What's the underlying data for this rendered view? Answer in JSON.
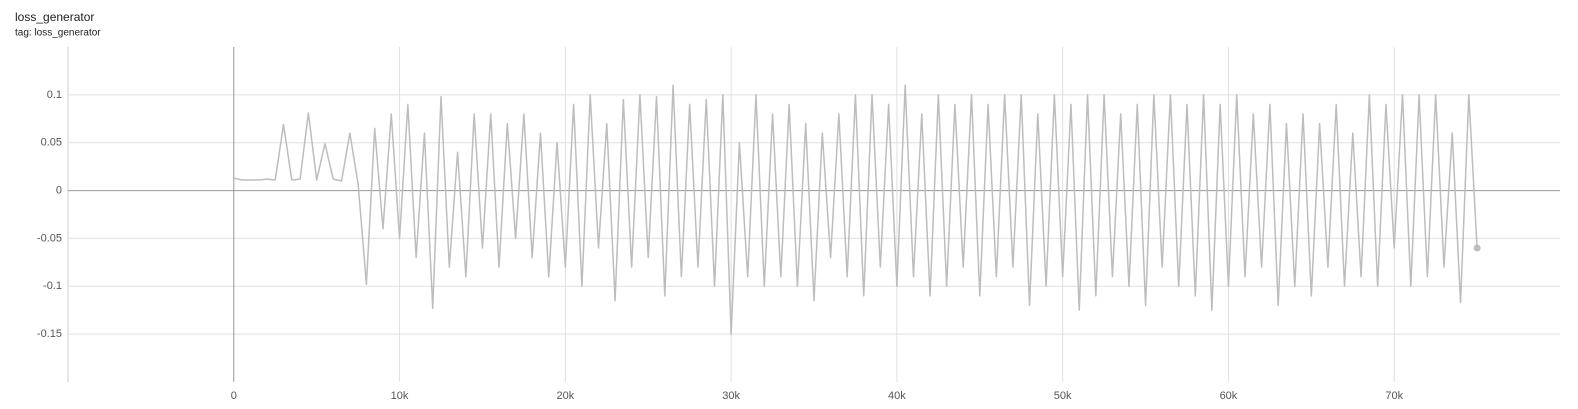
{
  "chart_data": {
    "type": "line",
    "title": "loss_generator",
    "subtitle": "tag: loss_generator",
    "x": [
      0,
      500,
      1000,
      1500,
      2000,
      2500,
      3000,
      3500,
      4000,
      4500,
      5000,
      5500,
      6000,
      6500,
      7000,
      7500,
      8000,
      8500,
      9000,
      9500,
      10000,
      10500,
      11000,
      11500,
      12000,
      12500,
      13000,
      13500,
      14000,
      14500,
      15000,
      15500,
      16000,
      16500,
      17000,
      17500,
      18000,
      18500,
      19000,
      19500,
      20000,
      20500,
      21000,
      21500,
      22000,
      22500,
      23000,
      23500,
      24000,
      24500,
      25000,
      25500,
      26000,
      26500,
      27000,
      27500,
      28000,
      28500,
      29000,
      29500,
      30000,
      30500,
      31000,
      31500,
      32000,
      32500,
      33000,
      33500,
      34000,
      34500,
      35000,
      35500,
      36000,
      36500,
      37000,
      37500,
      38000,
      38500,
      39000,
      39500,
      40000,
      40500,
      41000,
      41500,
      42000,
      42500,
      43000,
      43500,
      44000,
      44500,
      45000,
      45500,
      46000,
      46500,
      47000,
      47500,
      48000,
      48500,
      49000,
      49500,
      50000,
      50500,
      51000,
      51500,
      52000,
      52500,
      53000,
      53500,
      54000,
      54500,
      55000,
      55500,
      56000,
      56500,
      57000,
      57500,
      58000,
      58500,
      59000,
      59500,
      60000,
      60500,
      61000,
      61500,
      62000,
      62500,
      63000,
      63500,
      64000,
      64500,
      65000,
      65500,
      66000,
      66500,
      67000,
      67500,
      68000,
      68500,
      69000,
      69500,
      70000,
      70500,
      71000,
      71500,
      72000,
      72500,
      73000,
      73500,
      74000,
      74500,
      75000
    ],
    "series": [
      {
        "name": "loss_generator",
        "color": "#bdbdbd",
        "values": [
          0.013,
          0.011,
          0.011,
          0.011,
          0.012,
          0.011,
          0.069,
          0.011,
          0.012,
          0.081,
          0.011,
          0.049,
          0.012,
          0.01,
          0.06,
          0.007,
          -0.098,
          0.065,
          -0.04,
          0.08,
          -0.05,
          0.09,
          -0.07,
          0.06,
          -0.123,
          0.098,
          -0.08,
          0.04,
          -0.09,
          0.08,
          -0.06,
          0.08,
          -0.08,
          0.07,
          -0.05,
          0.08,
          -0.07,
          0.06,
          -0.09,
          0.05,
          -0.08,
          0.09,
          -0.1,
          0.1,
          -0.06,
          0.07,
          -0.115,
          0.095,
          -0.08,
          0.1,
          -0.07,
          0.098,
          -0.11,
          0.11,
          -0.09,
          0.09,
          -0.08,
          0.095,
          -0.1,
          0.1,
          -0.15,
          0.05,
          -0.09,
          0.1,
          -0.1,
          0.08,
          -0.09,
          0.09,
          -0.1,
          0.07,
          -0.115,
          0.06,
          -0.07,
          0.08,
          -0.09,
          0.1,
          -0.11,
          0.1,
          -0.08,
          0.09,
          -0.1,
          0.11,
          -0.09,
          0.08,
          -0.11,
          0.1,
          -0.1,
          0.09,
          -0.08,
          0.1,
          -0.11,
          0.09,
          -0.09,
          0.1,
          -0.08,
          0.1,
          -0.12,
          0.08,
          -0.1,
          0.1,
          -0.09,
          0.09,
          -0.125,
          0.1,
          -0.11,
          0.1,
          -0.09,
          0.08,
          -0.1,
          0.09,
          -0.12,
          0.1,
          -0.08,
          0.1,
          -0.1,
          0.09,
          -0.11,
          0.1,
          -0.125,
          0.09,
          -0.1,
          0.1,
          -0.09,
          0.08,
          -0.08,
          0.09,
          -0.12,
          0.07,
          -0.1,
          0.08,
          -0.11,
          0.07,
          -0.08,
          0.09,
          -0.1,
          0.06,
          -0.09,
          0.1,
          -0.1,
          0.09,
          -0.06,
          0.1,
          -0.1,
          0.1,
          -0.09,
          0.1,
          -0.08,
          0.06,
          -0.117,
          0.1,
          -0.06
        ]
      }
    ],
    "xlim": [
      -10000,
      80000
    ],
    "xticks": [
      0,
      {
        "value": 10000,
        "label": "10k"
      },
      {
        "value": 20000,
        "label": "20k"
      },
      {
        "value": 30000,
        "label": "30k"
      },
      {
        "value": 40000,
        "label": "40k"
      },
      {
        "value": 50000,
        "label": "50k"
      },
      {
        "value": 60000,
        "label": "60k"
      },
      {
        "value": 70000,
        "label": "70k"
      }
    ],
    "ylim": [
      -0.2,
      0.15
    ],
    "yticks": [
      -0.15,
      -0.1,
      -0.05,
      0,
      0.05,
      0.1
    ],
    "grid": true
  }
}
